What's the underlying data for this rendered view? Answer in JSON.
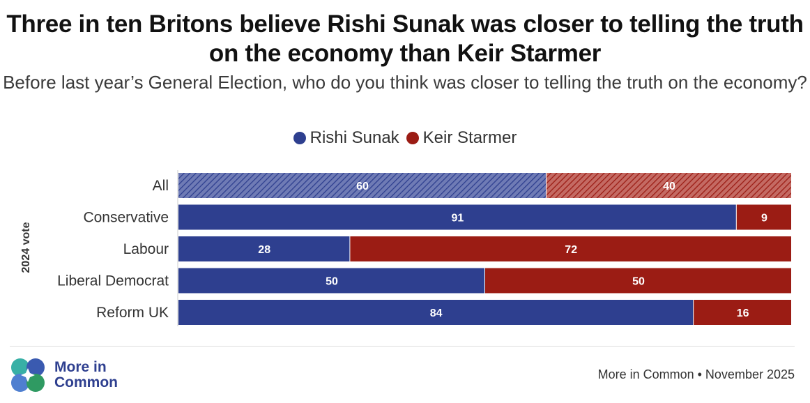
{
  "title": "Three in ten Britons believe Rishi Sunak was closer to telling the truth on the economy than Keir Starmer",
  "subtitle": "Before last year’s General Election, who do you think was closer to telling the truth on the economy?",
  "legend": [
    {
      "label": "Rishi Sunak",
      "color": "#2e3f8f"
    },
    {
      "label": "Keir Starmer",
      "color": "#9b1c14"
    }
  ],
  "axis_group_label": "2024 vote",
  "chart_data": {
    "type": "bar",
    "orientation": "horizontal",
    "stacked": true,
    "stack_total": 100,
    "categories": [
      "All",
      "Conservative",
      "Labour",
      "Liberal Democrat",
      "Reform UK"
    ],
    "highlight_category": "All",
    "series": [
      {
        "name": "Rishi Sunak",
        "color": "#2e3f8f",
        "values": [
          60,
          91,
          28,
          50,
          84
        ]
      },
      {
        "name": "Keir Starmer",
        "color": "#9b1c14",
        "values": [
          40,
          9,
          72,
          50,
          16
        ]
      }
    ],
    "title": "Three in ten Britons believe Rishi Sunak was closer to telling the truth on the economy than Keir Starmer",
    "ylabel": "2024 vote",
    "xlim": [
      0,
      100
    ],
    "data_labels": true
  },
  "footer": {
    "logo_line1": "More in",
    "logo_line2": "Common",
    "source": "More in Common • November 2025"
  }
}
